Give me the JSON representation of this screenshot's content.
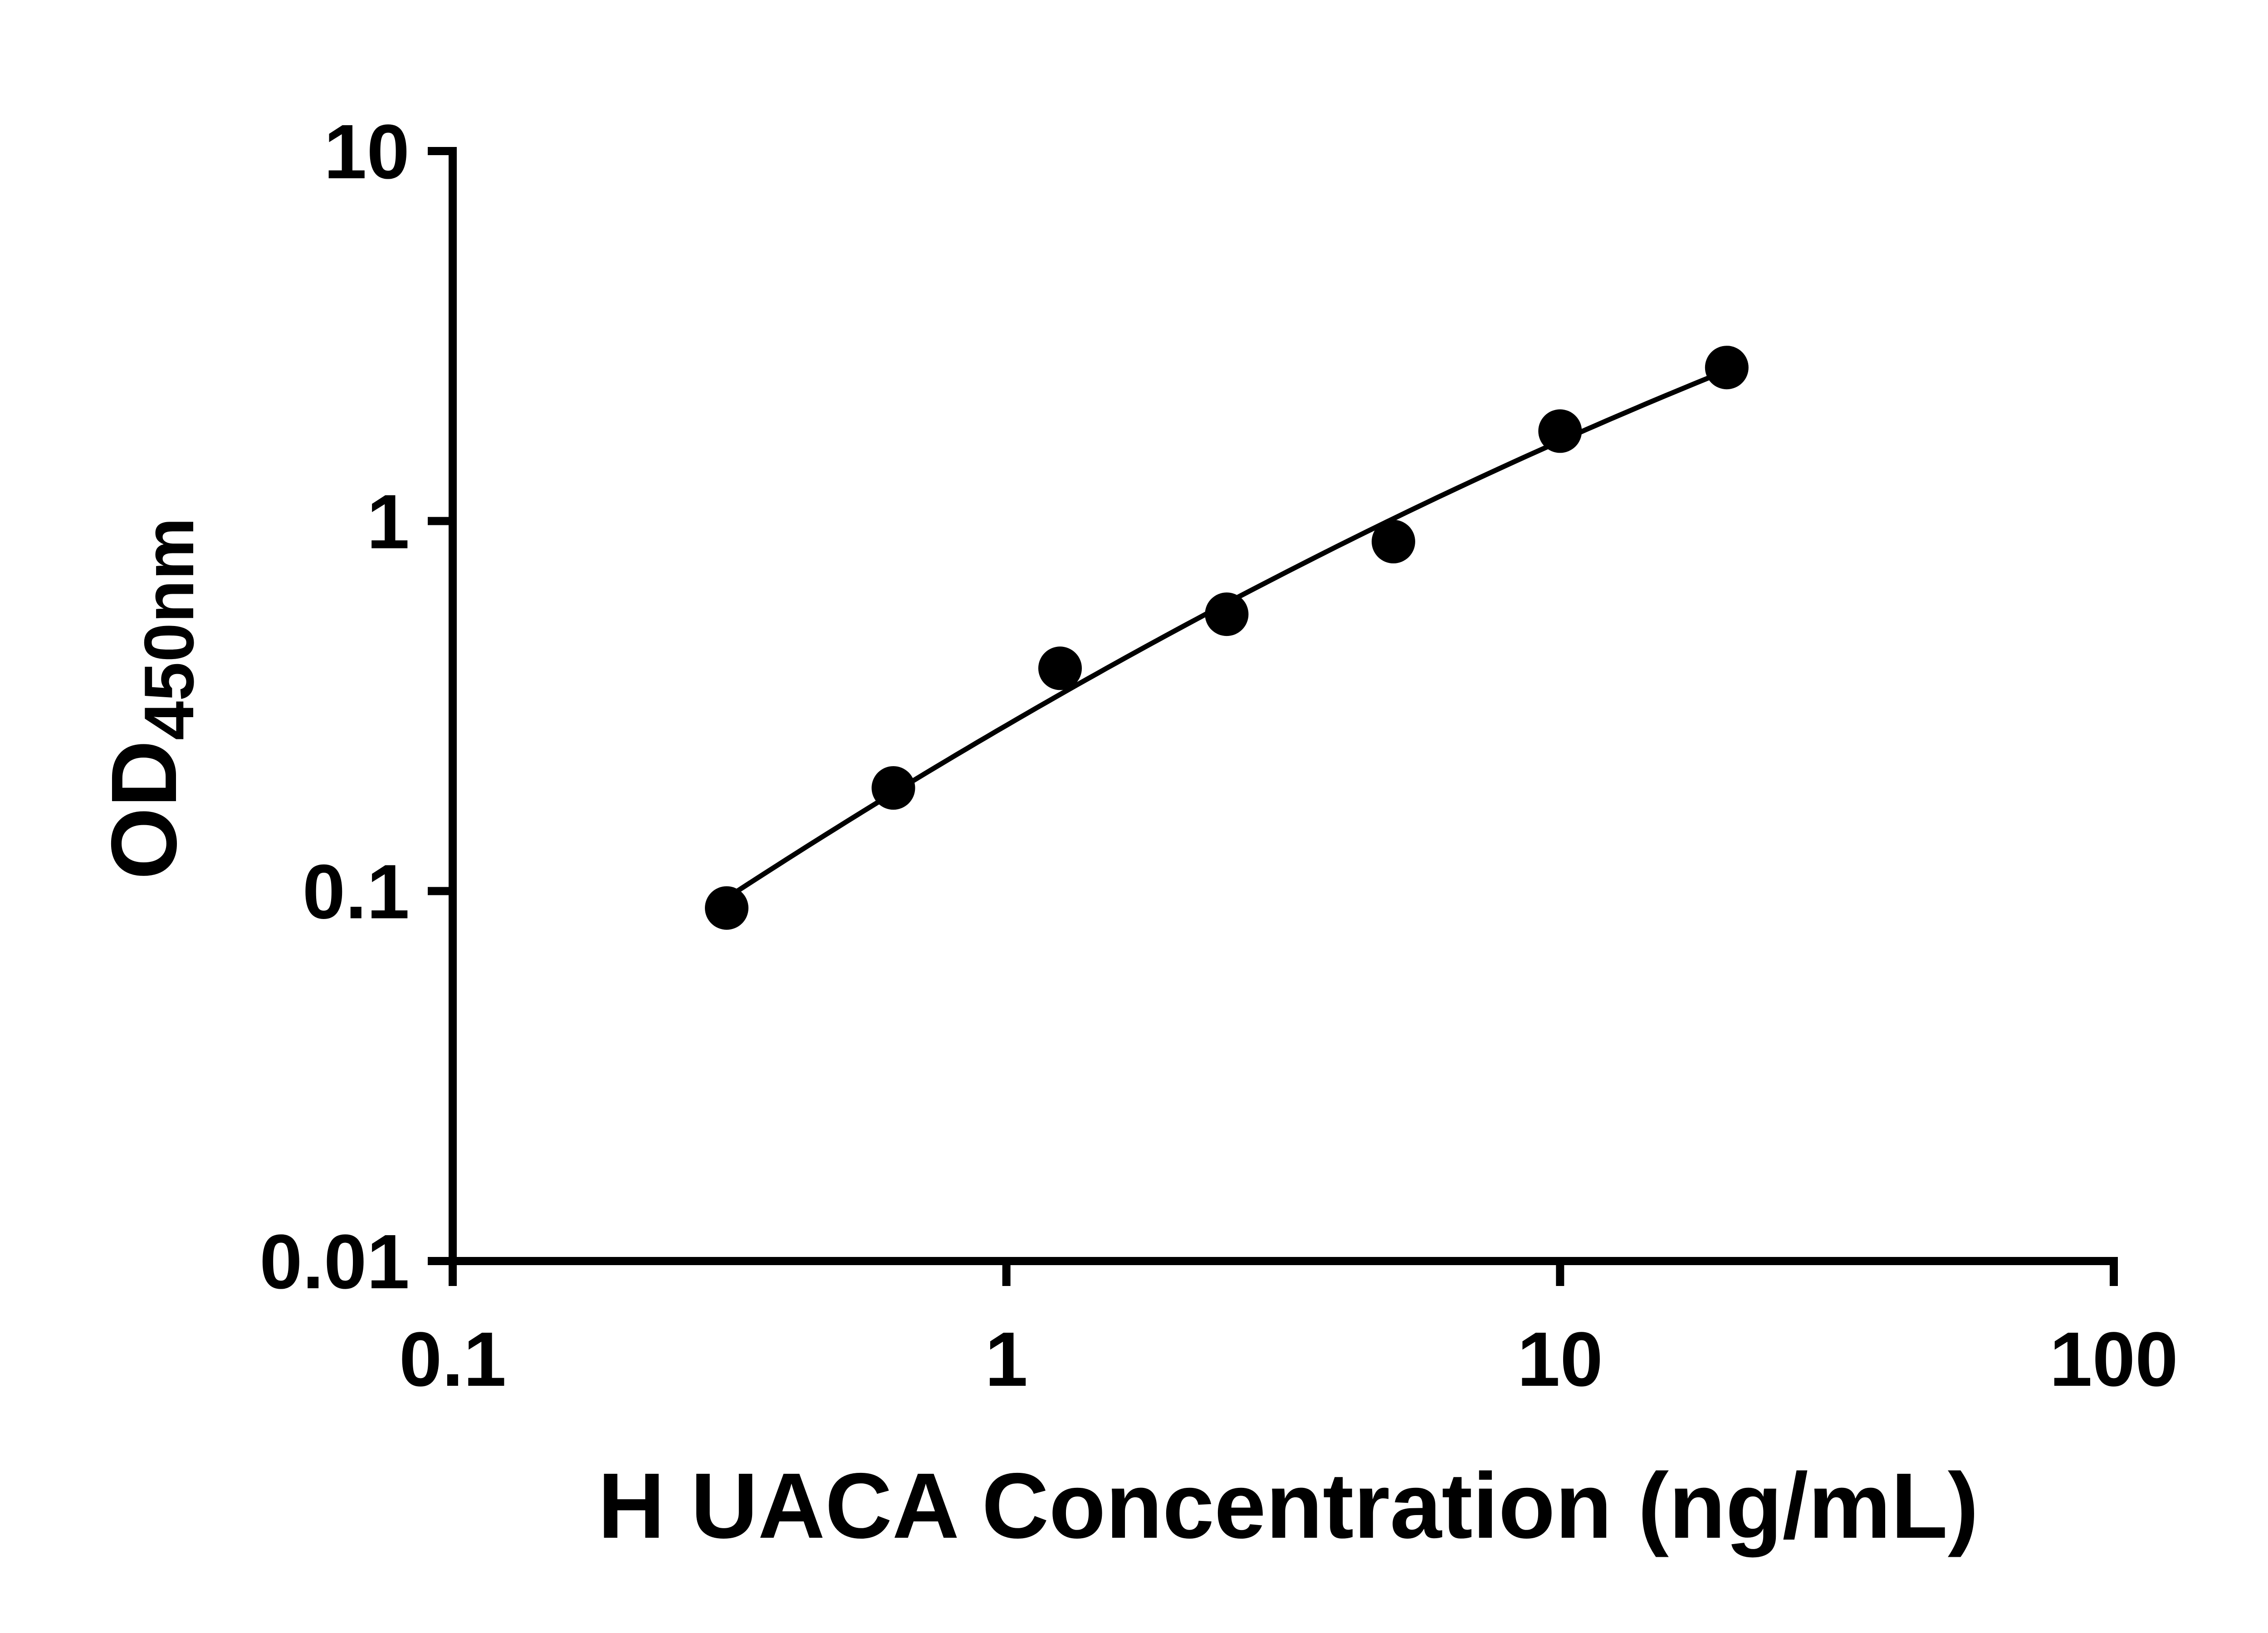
{
  "figure": {
    "background_color": "#ffffff",
    "ink_color": "#000000"
  },
  "chart_data": {
    "type": "scatter",
    "title": "",
    "xlabel": "H UACA Concentration (ng/mL)",
    "ylabel_main": "OD",
    "ylabel_sub": "450nm",
    "xscale": "log10",
    "yscale": "log10",
    "xlim": [
      0.1,
      100
    ],
    "ylim": [
      0.01,
      10
    ],
    "x_ticks": [
      0.1,
      1,
      10,
      100
    ],
    "x_tick_labels": [
      "0.1",
      "1",
      "10",
      "100"
    ],
    "y_ticks": [
      10,
      1,
      0.1,
      0.01
    ],
    "y_tick_labels": [
      "10",
      "1",
      "0.1",
      "0.01"
    ],
    "grid": false,
    "legend": "none",
    "axis_color": "#000000",
    "series": [
      {
        "x": [
          0.3125,
          0.625,
          1.25,
          2.5,
          5,
          10,
          20
        ],
        "y": [
          0.09,
          0.19,
          0.4,
          0.56,
          0.88,
          1.75,
          2.6
        ],
        "marker": "filled-circle",
        "marker_color": "#000000",
        "line": "smooth-fit-curve",
        "line_color": "#000000"
      }
    ]
  }
}
